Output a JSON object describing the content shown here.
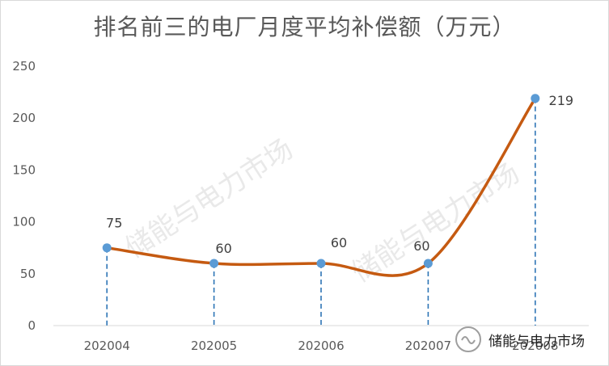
{
  "chart_data": {
    "type": "line",
    "title": "排名前三的电厂月度平均补偿额（万元）",
    "categories": [
      "202004",
      "202005",
      "202006",
      "202007",
      "202008"
    ],
    "series": [
      {
        "values": [
          75,
          60,
          60,
          60,
          219
        ]
      }
    ],
    "data_labels": [
      "75",
      "60",
      "60",
      "60",
      "219"
    ],
    "yticks": [
      "0",
      "50",
      "100",
      "150",
      "200",
      "250"
    ],
    "ylim": [
      0,
      250
    ],
    "grid": false,
    "smooth": true,
    "line_color": "#c55a11",
    "marker_color": "#5b9bd5",
    "drop_line_color": "#2e75b6"
  },
  "watermark": {
    "text": "储能与电力市场"
  },
  "brand": {
    "text": "储能与电力市场"
  }
}
